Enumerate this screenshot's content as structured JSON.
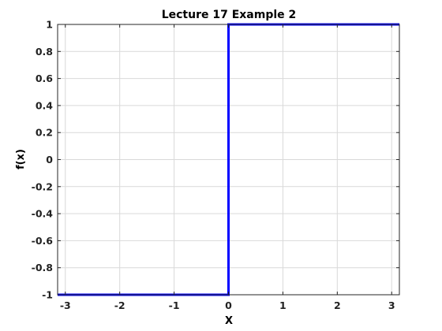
{
  "chart_data": {
    "type": "line",
    "title": "Lecture 17 Example 2",
    "xlabel": "X",
    "ylabel": "f(x)",
    "xlim": [
      -3.1416,
      3.1416
    ],
    "ylim": [
      -1,
      1
    ],
    "xticks": [
      -3,
      -2,
      -1,
      0,
      1,
      2,
      3
    ],
    "xtick_labels": [
      "-3",
      "-2",
      "-1",
      "0",
      "1",
      "2",
      "3"
    ],
    "yticks": [
      -1,
      -0.8,
      -0.6,
      -0.4,
      -0.2,
      0,
      0.2,
      0.4,
      0.6,
      0.8,
      1
    ],
    "ytick_labels": [
      "-1",
      "-0.8",
      "-0.6",
      "-0.4",
      "-0.2",
      "0",
      "0.2",
      "0.4",
      "0.6",
      "0.8",
      "1"
    ],
    "grid": true,
    "series": [
      {
        "color": "#0000ff",
        "x": [
          -3.1416,
          0,
          0,
          3.1416
        ],
        "y": [
          -1,
          -1,
          1,
          1
        ]
      }
    ]
  }
}
